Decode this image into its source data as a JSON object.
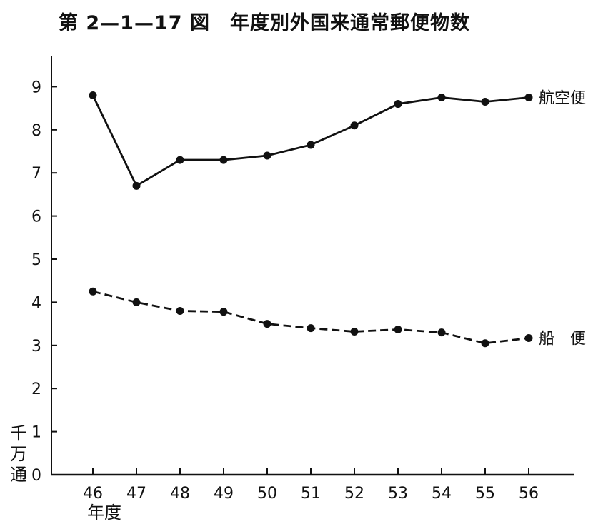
{
  "title": "第 2—1—17 図　年度別外国来通常郵便物数",
  "chart_data": {
    "type": "line",
    "title": "第 2—1—17 図　年度別外国来通常郵便物数",
    "xlabel": "年度",
    "ylabel": "千万通",
    "ylabel_chars": [
      "千",
      "万",
      "通"
    ],
    "categories": [
      "46",
      "47",
      "48",
      "49",
      "50",
      "51",
      "52",
      "53",
      "54",
      "55",
      "56"
    ],
    "ylim": [
      0,
      9.7
    ],
    "yticks": [
      0,
      1,
      2,
      3,
      4,
      5,
      6,
      7,
      8,
      9
    ],
    "grid": false,
    "legend": "labels at line ends (right)",
    "series": [
      {
        "name": "航空便",
        "style": "solid",
        "values": [
          8.8,
          6.7,
          7.3,
          7.3,
          7.4,
          7.65,
          8.1,
          8.6,
          8.75,
          8.65,
          8.75
        ]
      },
      {
        "name": "船　便",
        "style": "dashed",
        "values": [
          4.25,
          4.0,
          3.8,
          3.78,
          3.5,
          3.4,
          3.32,
          3.37,
          3.3,
          3.05,
          3.17
        ]
      }
    ]
  }
}
